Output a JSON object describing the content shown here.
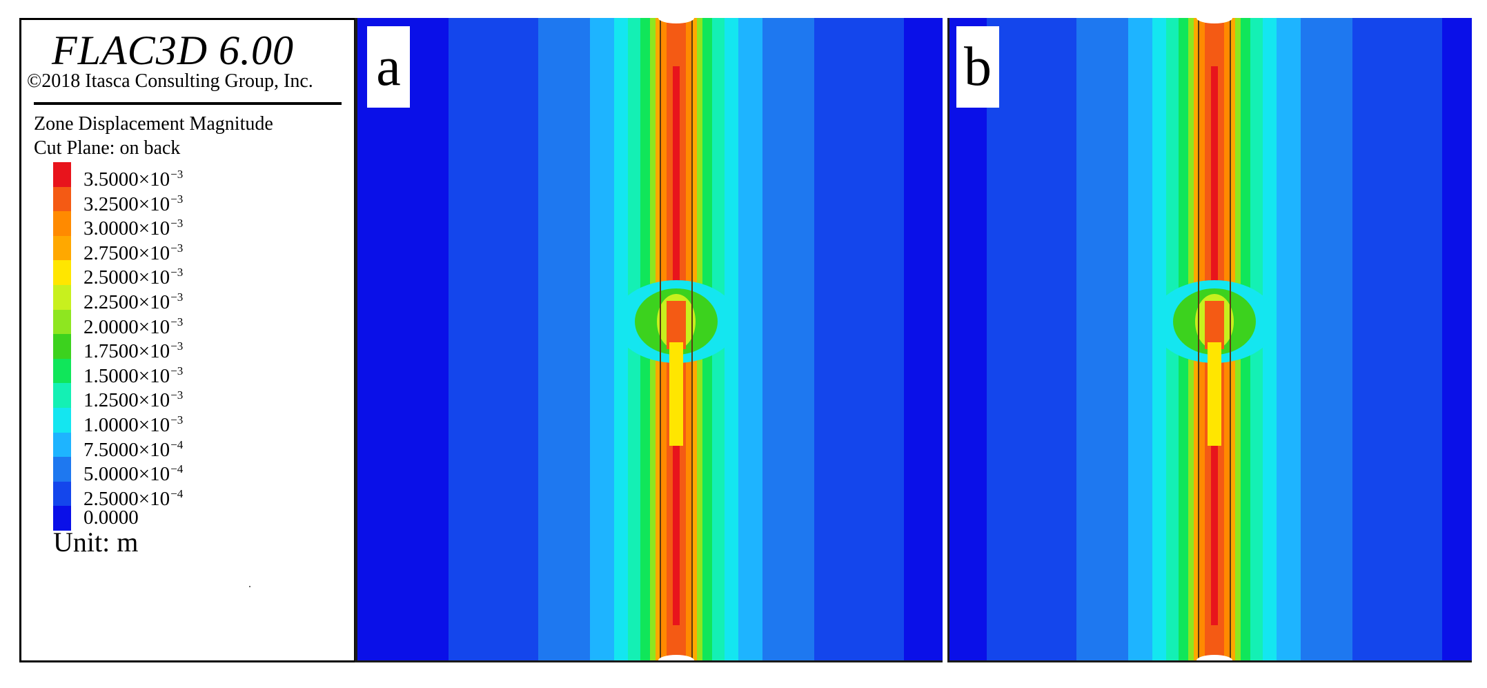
{
  "legend": {
    "software": "FLAC3D 6.00",
    "copyright": "©2018 Itasca Consulting Group, Inc.",
    "quantity": "Zone Displacement Magnitude",
    "cut_plane": "Cut Plane: on back",
    "unit": "Unit: m",
    "scale": [
      {
        "mantissa": "3.5000",
        "exponent": "-3",
        "color": "#e8141c"
      },
      {
        "mantissa": "3.2500",
        "exponent": "-3",
        "color": "#f45a14"
      },
      {
        "mantissa": "3.0000",
        "exponent": "-3",
        "color": "#ff8a00"
      },
      {
        "mantissa": "2.7500",
        "exponent": "-3",
        "color": "#ffa800"
      },
      {
        "mantissa": "2.5000",
        "exponent": "-3",
        "color": "#ffe600"
      },
      {
        "mantissa": "2.2500",
        "exponent": "-3",
        "color": "#c8f01e"
      },
      {
        "mantissa": "2.0000",
        "exponent": "-3",
        "color": "#8ee620"
      },
      {
        "mantissa": "1.7500",
        "exponent": "-3",
        "color": "#3cd21e"
      },
      {
        "mantissa": "1.5000",
        "exponent": "-3",
        "color": "#10e65a"
      },
      {
        "mantissa": "1.2500",
        "exponent": "-3",
        "color": "#14f0b4"
      },
      {
        "mantissa": "1.0000",
        "exponent": "-3",
        "color": "#14e6f0"
      },
      {
        "mantissa": "7.5000",
        "exponent": "-4",
        "color": "#1eb4ff"
      },
      {
        "mantissa": "5.0000",
        "exponent": "-4",
        "color": "#1e78f0"
      },
      {
        "mantissa": "2.5000",
        "exponent": "-4",
        "color": "#1446ec"
      },
      {
        "mantissa": "0.0000",
        "exponent": "",
        "color": "#0a10e8"
      }
    ]
  },
  "panels": [
    {
      "tag": "a"
    },
    {
      "tag": "b"
    }
  ]
}
